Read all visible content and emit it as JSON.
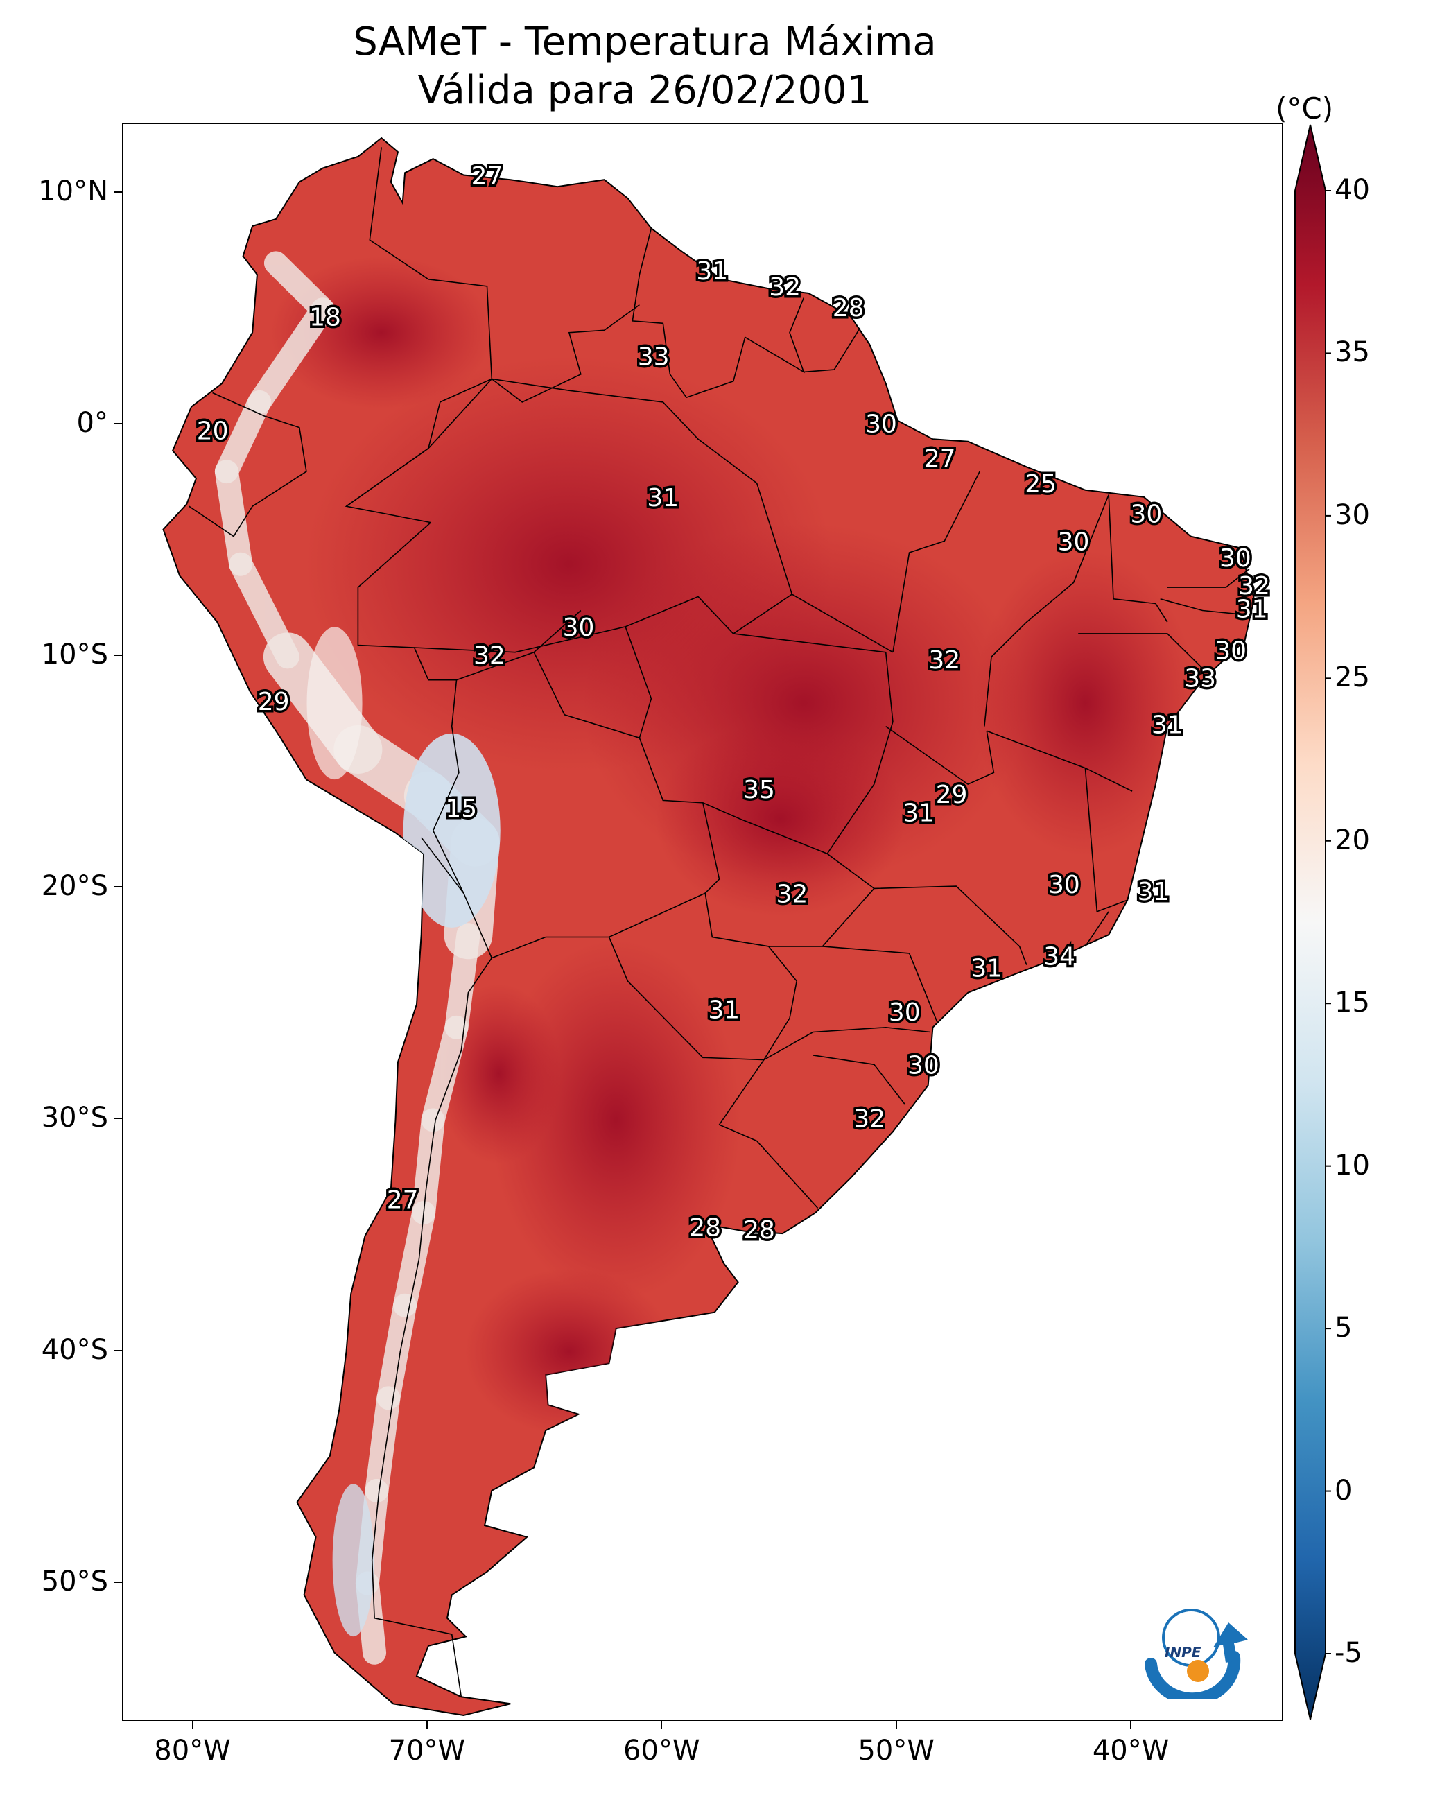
{
  "title": {
    "line1": "SAMeT - Temperatura Máxima",
    "line2": "Válida para 26/02/2001"
  },
  "map": {
    "extent": {
      "lon_min": -83,
      "lon_max": -33.5,
      "lat_min": -56,
      "lat_max": 13
    },
    "lon_ticks": [
      {
        "lon": -80,
        "label": "80°W"
      },
      {
        "lon": -70,
        "label": "70°W"
      },
      {
        "lon": -60,
        "label": "60°W"
      },
      {
        "lon": -50,
        "label": "50°W"
      },
      {
        "lon": -40,
        "label": "40°W"
      }
    ],
    "lat_ticks": [
      {
        "lat": 10,
        "label": "10°N"
      },
      {
        "lat": 0,
        "label": "0°"
      },
      {
        "lat": -10,
        "label": "10°S"
      },
      {
        "lat": -20,
        "label": "20°S"
      },
      {
        "lat": -30,
        "label": "30°S"
      },
      {
        "lat": -40,
        "label": "40°S"
      },
      {
        "lat": -50,
        "label": "50°S"
      }
    ],
    "land_color": "#d4433b",
    "hot_color": "#b2182b",
    "cold_color": "#e6eef5",
    "ocean_color": "#ffffff",
    "contour_labels": [
      {
        "text": "27",
        "lon": -67.5,
        "lat": 10.7
      },
      {
        "text": "31",
        "lon": -57.9,
        "lat": 6.6
      },
      {
        "text": "32",
        "lon": -54.8,
        "lat": 5.9
      },
      {
        "text": "28",
        "lon": -52.1,
        "lat": 5.0
      },
      {
        "text": "18",
        "lon": -74.4,
        "lat": 4.6
      },
      {
        "text": "33",
        "lon": -60.4,
        "lat": 2.9
      },
      {
        "text": "30",
        "lon": -50.7,
        "lat": 0.0
      },
      {
        "text": "20",
        "lon": -79.2,
        "lat": -0.3
      },
      {
        "text": "27",
        "lon": -48.2,
        "lat": -1.5
      },
      {
        "text": "25",
        "lon": -43.9,
        "lat": -2.6
      },
      {
        "text": "31",
        "lon": -60.0,
        "lat": -3.2
      },
      {
        "text": "30",
        "lon": -39.4,
        "lat": -3.9
      },
      {
        "text": "30",
        "lon": -42.5,
        "lat": -5.1
      },
      {
        "text": "30",
        "lon": -35.6,
        "lat": -5.8
      },
      {
        "text": "32",
        "lon": -34.8,
        "lat": -7.0
      },
      {
        "text": "31",
        "lon": -34.9,
        "lat": -8.0
      },
      {
        "text": "30",
        "lon": -63.6,
        "lat": -8.8
      },
      {
        "text": "32",
        "lon": -67.4,
        "lat": -10.0
      },
      {
        "text": "32",
        "lon": -48.0,
        "lat": -10.2
      },
      {
        "text": "30",
        "lon": -35.8,
        "lat": -9.8
      },
      {
        "text": "33",
        "lon": -37.1,
        "lat": -11.0
      },
      {
        "text": "29",
        "lon": -76.6,
        "lat": -12.0
      },
      {
        "text": "31",
        "lon": -38.5,
        "lat": -13.0
      },
      {
        "text": "35",
        "lon": -55.9,
        "lat": -15.8
      },
      {
        "text": "29",
        "lon": -47.7,
        "lat": -16.0
      },
      {
        "text": "31",
        "lon": -49.1,
        "lat": -16.8
      },
      {
        "text": "15",
        "lon": -68.6,
        "lat": -16.6
      },
      {
        "text": "30",
        "lon": -42.9,
        "lat": -19.9
      },
      {
        "text": "31",
        "lon": -39.1,
        "lat": -20.2
      },
      {
        "text": "32",
        "lon": -54.5,
        "lat": -20.3
      },
      {
        "text": "34",
        "lon": -43.1,
        "lat": -23.0
      },
      {
        "text": "31",
        "lon": -46.2,
        "lat": -23.5
      },
      {
        "text": "31",
        "lon": -57.4,
        "lat": -25.3
      },
      {
        "text": "30",
        "lon": -49.7,
        "lat": -25.4
      },
      {
        "text": "30",
        "lon": -48.9,
        "lat": -27.7
      },
      {
        "text": "32",
        "lon": -51.2,
        "lat": -30.0
      },
      {
        "text": "27",
        "lon": -71.1,
        "lat": -33.5
      },
      {
        "text": "28",
        "lon": -58.2,
        "lat": -34.7
      },
      {
        "text": "28",
        "lon": -55.9,
        "lat": -34.8
      }
    ]
  },
  "colorbar": {
    "unit": "(°C)",
    "min": -7,
    "max": 42,
    "ticks": [
      {
        "value": 40,
        "label": "40"
      },
      {
        "value": 35,
        "label": "35"
      },
      {
        "value": 30,
        "label": "30"
      },
      {
        "value": 25,
        "label": "25"
      },
      {
        "value": 20,
        "label": "20"
      },
      {
        "value": 15,
        "label": "15"
      },
      {
        "value": 10,
        "label": "10"
      },
      {
        "value": 5,
        "label": "5"
      },
      {
        "value": 0,
        "label": "0"
      },
      {
        "value": -5,
        "label": "-5"
      }
    ],
    "colormap": [
      "#053061",
      "#2166ac",
      "#4393c3",
      "#92c5de",
      "#d1e5f0",
      "#f7f7f7",
      "#fddbc7",
      "#f4a582",
      "#d6604d",
      "#b2182b",
      "#67001f"
    ]
  },
  "logo": {
    "text": "INPE"
  }
}
